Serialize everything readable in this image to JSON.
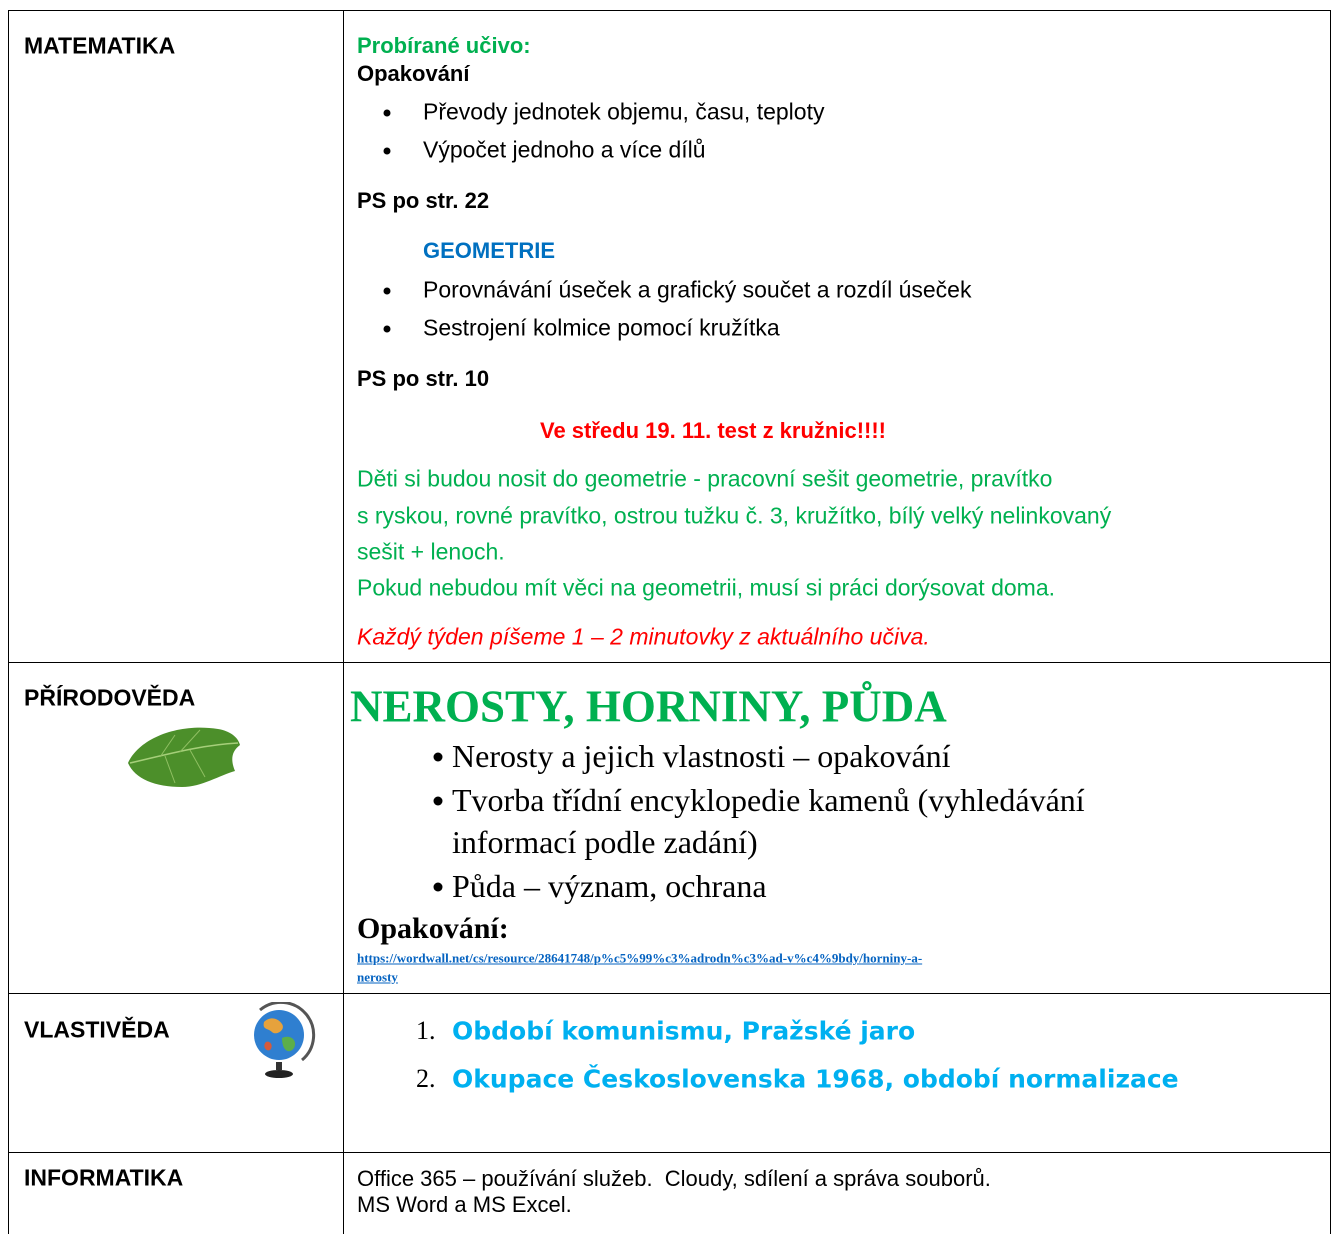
{
  "rows": [
    {
      "subject": "MATEMATIKA",
      "heading": "Probírané učivo:",
      "review_title": "Opakování",
      "review_items": [
        "Převody jednotek objemu, času, teploty",
        "Výpočet jednoho a více dílů"
      ],
      "review_page": "PS po str. 22",
      "geometry_title": "GEOMETRIE",
      "geometry_items": [
        "Porovnávání úseček a grafický součet a rozdíl úseček",
        "Sestrojení kolmice pomocí kružítka"
      ],
      "geometry_page": "PS po str. 10",
      "alert": "Ve středu 19. 11. test z kružnic!!!!",
      "note_lines": [
        "Děti si budou nosit do geometrie - pracovní sešit geometrie, pravítko",
        "s ryskou, rovné pravítko, ostrou tužku č. 3, kružítko, bílý velký nelinkovaný",
        "sešit + lenoch.",
        "Pokud nebudou mít věci na geometrii, musí si práci dorýsovat doma."
      ],
      "reminder": "Každý týden píšeme 1 – 2 minutovky z aktuálního učiva."
    },
    {
      "subject": "PŘÍRODOVĚDA",
      "title": "NEROSTY, HORNINY, PŮDA",
      "items": [
        "Nerosty a jejich vlastnosti – opakování",
        "Tvorba třídní encyklopedie kamenů (vyhledávání",
        "informací podle zadání)",
        "Půda – význam, ochrana"
      ],
      "review_label": "Opakování:",
      "link_lines": [
        "https://wordwall.net/cs/resource/28641748/p%c5%99%c3%adrodn%c3%ad-v%c4%9bdy/horniny-a-",
        "nerosty"
      ]
    },
    {
      "subject": "VLASTIVĚDA",
      "items": [
        {
          "number": "1.",
          "text": "Období komunismu, Pražské jaro"
        },
        {
          "number": "2.",
          "text": "Okupace Československa 1968, období normalizace"
        }
      ]
    },
    {
      "subject": "INFORMATIKA",
      "lines": [
        "Office 365 – používání služeb.  Cloudy, sdílení a správa souborů.",
        "MS Word a MS Excel."
      ]
    }
  ]
}
